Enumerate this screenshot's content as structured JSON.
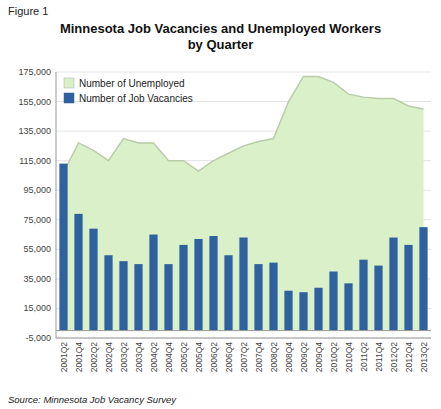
{
  "chart_data": {
    "type": "bar",
    "title": "Minnesota Job Vacancies and Unemployed Workers\nby Quarter",
    "annotations": [
      "Figure 1",
      "Source: Minnesota Job Vacancy Survey"
    ],
    "categories": [
      "2001Q2",
      "2001Q4",
      "2002Q2",
      "2002Q4",
      "2003Q2",
      "2003Q4",
      "2004Q2",
      "2004Q4",
      "2005Q2",
      "2005Q4",
      "2006Q2",
      "2006Q4",
      "2007Q2",
      "2007Q4",
      "2008Q2",
      "2008Q4",
      "2009Q2",
      "2009Q4",
      "2010Q2",
      "2010Q4",
      "2011Q2",
      "2011Q4",
      "2012Q2",
      "2012Q4",
      "2013Q2"
    ],
    "series": [
      {
        "name": "Number of Unemployed",
        "type": "area",
        "color": "#d9f0c8",
        "values": [
          107000,
          127000,
          122000,
          115000,
          130000,
          127000,
          127000,
          115000,
          115000,
          108000,
          115000,
          120000,
          125000,
          128000,
          130000,
          155000,
          172000,
          172000,
          168000,
          160000,
          158000,
          157000,
          157000,
          152000,
          150000
        ]
      },
      {
        "name": "Number of Job Vacancies",
        "type": "bar",
        "color": "#2e619e",
        "values": [
          113000,
          79000,
          69000,
          51000,
          47000,
          45000,
          65000,
          45000,
          58000,
          62000,
          64000,
          51000,
          63000,
          45000,
          46000,
          27000,
          26000,
          29000,
          40000,
          32000,
          48000,
          44000,
          63000,
          58000,
          70000
        ]
      }
    ],
    "ylim": [
      -5000,
      175000
    ],
    "yticks": [
      {
        "value": -5000,
        "label": "-5,000"
      },
      {
        "value": 15000,
        "label": "15,000"
      },
      {
        "value": 35000,
        "label": "35,000"
      },
      {
        "value": 55000,
        "label": "55,000"
      },
      {
        "value": 75000,
        "label": "75,000"
      },
      {
        "value": 95000,
        "label": "95,000"
      },
      {
        "value": 115000,
        "label": "115,000"
      },
      {
        "value": 135000,
        "label": "135,000"
      },
      {
        "value": 155000,
        "label": "155,000"
      },
      {
        "value": 175000,
        "label": "175,000"
      }
    ],
    "grid": true,
    "legend": "upper left"
  }
}
